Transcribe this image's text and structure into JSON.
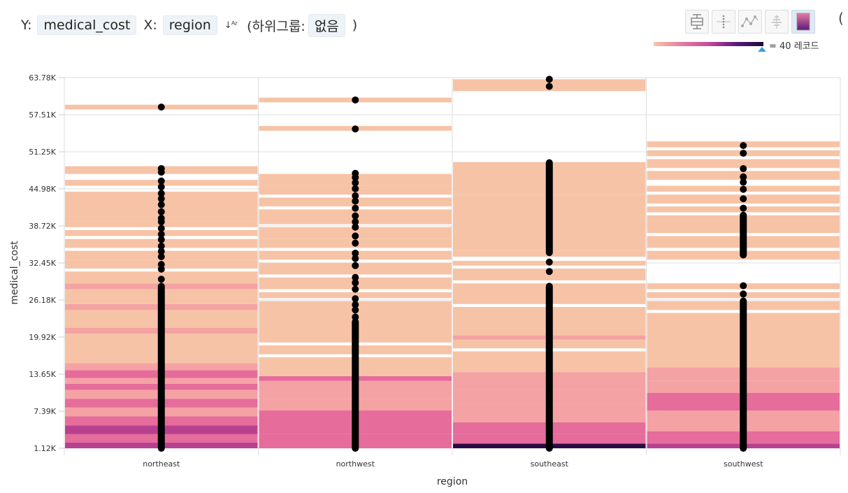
{
  "header": {
    "y_prefix": "Y:",
    "y_field": "medical_cost",
    "x_prefix": "X:",
    "x_field": "region",
    "sort_icon": "sort-az-icon",
    "subgroup_open": "(하위그룹:",
    "subgroup_value": "없음",
    "subgroup_close": ")"
  },
  "toolbar_icons": [
    "boxplot-icon",
    "strip-plot-icon",
    "line-plot-icon",
    "histogram-icon",
    "heatmap-icon"
  ],
  "legend": {
    "label": "= 40 레코드",
    "colors": [
      "#f8c6a6",
      "#e77ba0",
      "#c84a9a",
      "#5a1a7a",
      "#1a0a3a"
    ]
  },
  "chart_data": {
    "type": "scatter",
    "xlabel": "region",
    "ylabel": "medical_cost",
    "categories": [
      "northeast",
      "northwest",
      "southeast",
      "southwest"
    ],
    "ylim": [
      1120,
      63780
    ],
    "yticks": [
      "1.12K",
      "7.39K",
      "13.65K",
      "19.92K",
      "26.18K",
      "32.45K",
      "38.72K",
      "44.98K",
      "51.25K",
      "57.51K",
      "63.78K"
    ],
    "heatmap": [
      {
        "region": "northeast",
        "bands": [
          [
            1120,
            2100,
            4
          ],
          [
            2100,
            3500,
            3
          ],
          [
            3500,
            5000,
            4
          ],
          [
            5000,
            6500,
            3
          ],
          [
            6500,
            8000,
            2
          ],
          [
            8000,
            9500,
            3
          ],
          [
            9500,
            11000,
            2
          ],
          [
            11000,
            12000,
            3
          ],
          [
            12000,
            13000,
            2
          ],
          [
            13000,
            14300,
            3
          ],
          [
            14300,
            15500,
            2
          ],
          [
            15500,
            20500,
            1
          ],
          [
            20500,
            21500,
            2
          ],
          [
            21500,
            24500,
            1
          ],
          [
            24500,
            25500,
            2
          ],
          [
            25500,
            28000,
            1
          ],
          [
            28000,
            29000,
            2
          ],
          [
            29000,
            31000,
            1
          ],
          [
            31500,
            33000,
            1
          ],
          [
            33000,
            34500,
            1
          ],
          [
            35000,
            36500,
            1
          ],
          [
            37000,
            38000,
            1
          ],
          [
            38500,
            39500,
            1
          ],
          [
            39500,
            44500,
            1
          ],
          [
            45500,
            46500,
            1
          ],
          [
            47500,
            48800,
            1
          ],
          [
            58400,
            59200,
            1
          ]
        ]
      },
      {
        "region": "northwest",
        "bands": [
          [
            1120,
            3500,
            3
          ],
          [
            3500,
            7500,
            3
          ],
          [
            7500,
            9500,
            2
          ],
          [
            9500,
            12500,
            2
          ],
          [
            12500,
            13300,
            3
          ],
          [
            13300,
            16500,
            1
          ],
          [
            17000,
            18500,
            1
          ],
          [
            19000,
            26000,
            1
          ],
          [
            26500,
            27500,
            1
          ],
          [
            28000,
            30000,
            1
          ],
          [
            30500,
            32500,
            1
          ],
          [
            33000,
            34500,
            1
          ],
          [
            35000,
            36500,
            1
          ],
          [
            36500,
            38500,
            1
          ],
          [
            39000,
            41500,
            1
          ],
          [
            42000,
            43500,
            1
          ],
          [
            44000,
            45500,
            1
          ],
          [
            45500,
            47500,
            1
          ],
          [
            54800,
            55600,
            1
          ],
          [
            59600,
            60400,
            1
          ]
        ]
      },
      {
        "region": "southeast",
        "bands": [
          [
            1120,
            1900,
            5
          ],
          [
            1900,
            3500,
            3
          ],
          [
            3500,
            5500,
            3
          ],
          [
            5500,
            8500,
            2
          ],
          [
            8500,
            11000,
            2
          ],
          [
            11000,
            14000,
            2
          ],
          [
            14000,
            17500,
            1
          ],
          [
            18000,
            19500,
            1
          ],
          [
            19500,
            20200,
            2
          ],
          [
            20200,
            25000,
            1
          ],
          [
            25500,
            29000,
            1
          ],
          [
            29500,
            31500,
            1
          ],
          [
            32000,
            32800,
            1
          ],
          [
            33500,
            34500,
            1
          ],
          [
            34500,
            44000,
            1
          ],
          [
            44000,
            49500,
            1
          ],
          [
            61500,
            63500,
            1
          ]
        ]
      },
      {
        "region": "southwest",
        "bands": [
          [
            1120,
            1900,
            4
          ],
          [
            1900,
            4000,
            3
          ],
          [
            4000,
            7500,
            2
          ],
          [
            7500,
            10500,
            3
          ],
          [
            10500,
            12500,
            2
          ],
          [
            12500,
            14800,
            2
          ],
          [
            14800,
            24000,
            1
          ],
          [
            24500,
            26000,
            1
          ],
          [
            26500,
            27500,
            1
          ],
          [
            28000,
            29000,
            1
          ],
          [
            33000,
            34500,
            1
          ],
          [
            35000,
            37000,
            1
          ],
          [
            37500,
            40500,
            1
          ],
          [
            41000,
            42000,
            1
          ],
          [
            42500,
            44000,
            1
          ],
          [
            44500,
            45500,
            1
          ],
          [
            46500,
            48000,
            1
          ],
          [
            48500,
            50000,
            1
          ],
          [
            50500,
            51500,
            1
          ],
          [
            52000,
            53000,
            1
          ]
        ]
      }
    ],
    "points": [
      {
        "region": "northeast",
        "dense": [
          [
            1120,
            28500
          ]
        ],
        "values": [
          29700,
          31400,
          32200,
          33500,
          34400,
          35300,
          36400,
          37300,
          38300,
          39400,
          40000,
          41100,
          42300,
          43300,
          44200,
          45300,
          46300,
          47800,
          48400,
          58800
        ]
      },
      {
        "region": "northwest",
        "dense": [
          [
            1120,
            22500
          ]
        ],
        "values": [
          23300,
          24500,
          25400,
          26400,
          28000,
          29100,
          30000,
          32000,
          33200,
          34100,
          35800,
          37000,
          38500,
          39400,
          40400,
          41700,
          42900,
          43800,
          45000,
          46000,
          46900,
          47600,
          55100,
          60000
        ]
      },
      {
        "region": "southeast",
        "dense": [
          [
            1120,
            28500
          ],
          [
            34200,
            49400
          ]
        ],
        "values": [
          31000,
          32600,
          62300,
          63500
        ]
      },
      {
        "region": "southwest",
        "dense": [
          [
            1120,
            26000
          ],
          [
            33800,
            40500
          ]
        ],
        "values": [
          27200,
          28600,
          41700,
          43300,
          44900,
          46100,
          47000,
          48400,
          51000,
          52300
        ]
      }
    ]
  }
}
